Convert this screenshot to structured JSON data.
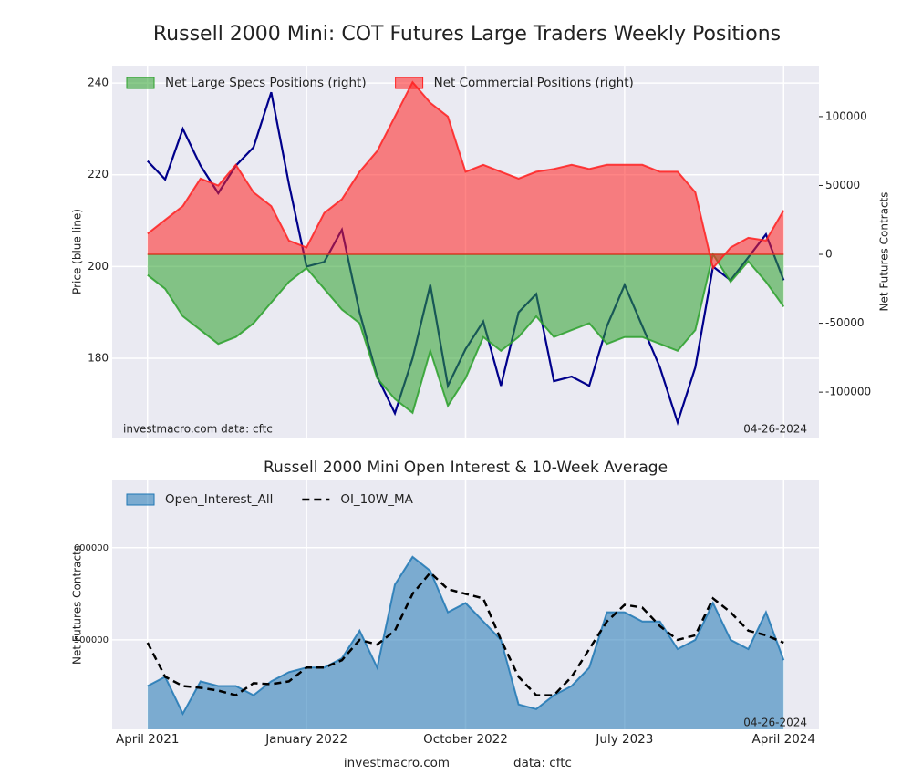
{
  "title": "Russell 2000 Mini: COT Futures Large Traders Weekly Positions",
  "footer": [
    "investmacro.com",
    "data: cftc"
  ],
  "chart_data": [
    {
      "type": "line",
      "ylabel": "Price (blue line)",
      "y2label": "Net Futures Contracts",
      "annotations": [
        "investmacro.com   data: cftc",
        "04-26-2024"
      ],
      "x": [
        "2021-04",
        "2021-05",
        "2021-06",
        "2021-07",
        "2021-08",
        "2021-09",
        "2021-10",
        "2021-11",
        "2021-12",
        "2022-01",
        "2022-02",
        "2022-03",
        "2022-04",
        "2022-05",
        "2022-06",
        "2022-07",
        "2022-08",
        "2022-09",
        "2022-10",
        "2022-11",
        "2022-12",
        "2023-01",
        "2023-02",
        "2023-03",
        "2023-04",
        "2023-05",
        "2023-06",
        "2023-07",
        "2023-08",
        "2023-09",
        "2023-10",
        "2023-11",
        "2023-12",
        "2024-01",
        "2024-02",
        "2024-03",
        "2024-04"
      ],
      "xlim": [
        "2021-02",
        "2024-06"
      ],
      "xticks": [
        "2021-04",
        "2022-01",
        "2022-10",
        "2023-07",
        "2024-04"
      ],
      "ylim": [
        162.7,
        243.8
      ],
      "yticks": [
        180,
        200,
        220,
        240
      ],
      "y2lim": [
        -133000,
        137000
      ],
      "y2ticks": [
        -100000,
        -50000,
        0,
        50000,
        100000
      ],
      "grid": true,
      "legend": "upper left",
      "series": [
        {
          "style": "line",
          "axis": "y",
          "color": "#00008b",
          "values": [
            223,
            219,
            230,
            222,
            216,
            222,
            226,
            238,
            218,
            200,
            201,
            208,
            190,
            176,
            168,
            180,
            196,
            174,
            182,
            188,
            174,
            190,
            194,
            175,
            176,
            174,
            187,
            196,
            187,
            178,
            166,
            178,
            200,
            197,
            202,
            207,
            197
          ]
        },
        {
          "name": "Net Large Specs Positions (right)",
          "style": "area",
          "axis": "y2",
          "color": "#2ca02c",
          "values": [
            -15000,
            -25000,
            -45000,
            -55000,
            -65000,
            -60000,
            -50000,
            -35000,
            -20000,
            -10000,
            -25000,
            -40000,
            -50000,
            -90000,
            -105000,
            -115000,
            -70000,
            -110000,
            -90000,
            -60000,
            -70000,
            -60000,
            -45000,
            -60000,
            -55000,
            -50000,
            -65000,
            -60000,
            -60000,
            -65000,
            -70000,
            -55000,
            0,
            -20000,
            -5000,
            -20000,
            -38000
          ]
        },
        {
          "name": "Net Commercial Positions (right)",
          "style": "area",
          "axis": "y2",
          "color": "#ff2020",
          "values": [
            15000,
            25000,
            35000,
            55000,
            50000,
            65000,
            45000,
            35000,
            10000,
            5000,
            30000,
            40000,
            60000,
            75000,
            100000,
            125000,
            110000,
            100000,
            60000,
            65000,
            60000,
            55000,
            60000,
            62000,
            65000,
            62000,
            65000,
            65000,
            65000,
            60000,
            60000,
            45000,
            -10000,
            5000,
            12000,
            10000,
            32000
          ]
        }
      ]
    },
    {
      "type": "area",
      "title": "Russell 2000 Mini Open Interest & 10-Week Average",
      "ylabel": "Net Futures Contracts",
      "annotations": [
        "04-26-2024"
      ],
      "x": [
        "2021-04",
        "2021-05",
        "2021-06",
        "2021-07",
        "2021-08",
        "2021-09",
        "2021-10",
        "2021-11",
        "2021-12",
        "2022-01",
        "2022-02",
        "2022-03",
        "2022-04",
        "2022-05",
        "2022-06",
        "2022-07",
        "2022-08",
        "2022-09",
        "2022-10",
        "2022-11",
        "2022-12",
        "2023-01",
        "2023-02",
        "2023-03",
        "2023-04",
        "2023-05",
        "2023-06",
        "2023-07",
        "2023-08",
        "2023-09",
        "2023-10",
        "2023-11",
        "2023-12",
        "2024-01",
        "2024-02",
        "2024-03",
        "2024-04"
      ],
      "xlim": [
        "2021-02",
        "2024-06"
      ],
      "xticks": [
        {
          "value": "2021-04",
          "label": "April 2021"
        },
        {
          "value": "2022-01",
          "label": "January 2022"
        },
        {
          "value": "2022-10",
          "label": "October 2022"
        },
        {
          "value": "2023-07",
          "label": "July 2023"
        },
        {
          "value": "2024-04",
          "label": "April 2024"
        }
      ],
      "ylim": [
        403000,
        673000
      ],
      "yticks": [
        500000,
        600000
      ],
      "grid": true,
      "legend": "upper left",
      "series": [
        {
          "name": "Open_Interest_All",
          "style": "area",
          "axis": "y",
          "color": "#1f77b4",
          "values": [
            450000,
            460000,
            420000,
            455000,
            450000,
            450000,
            440000,
            455000,
            465000,
            470000,
            470000,
            480000,
            510000,
            470000,
            560000,
            590000,
            575000,
            530000,
            540000,
            520000,
            500000,
            430000,
            425000,
            440000,
            450000,
            470000,
            530000,
            530000,
            520000,
            520000,
            490000,
            500000,
            540000,
            500000,
            490000,
            530000,
            478000
          ]
        },
        {
          "name": "OI_10W_MA",
          "style": "dashed",
          "axis": "y",
          "color": "#000000",
          "values": [
            497000,
            460000,
            450000,
            448000,
            445000,
            440000,
            453000,
            452000,
            455000,
            470000,
            470000,
            478000,
            500000,
            495000,
            510000,
            550000,
            573000,
            555000,
            550000,
            545000,
            500000,
            460000,
            440000,
            440000,
            460000,
            490000,
            520000,
            538000,
            535000,
            515000,
            500000,
            505000,
            545000,
            530000,
            510000,
            505000,
            497000
          ]
        }
      ]
    }
  ]
}
